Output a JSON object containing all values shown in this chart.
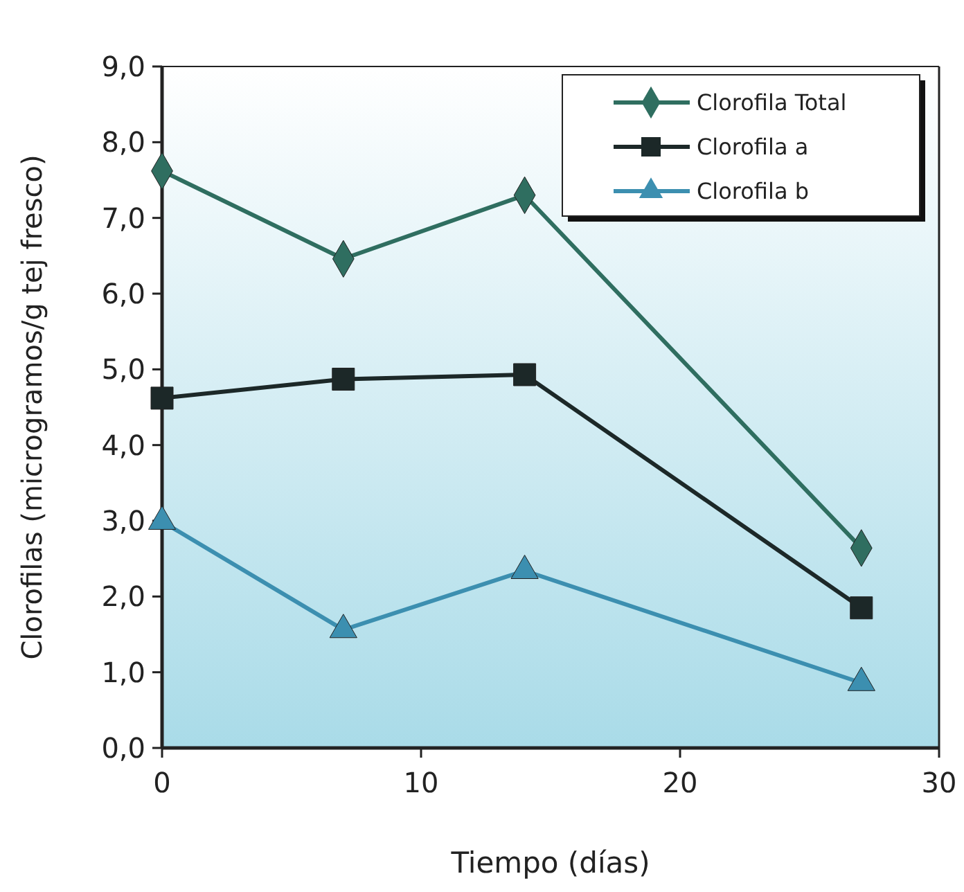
{
  "chart_data": {
    "type": "line",
    "xlabel": "Tiempo (días)",
    "ylabel": "Clorofilas (microgramos/g tej fresco)",
    "xlim": [
      0,
      30
    ],
    "xticks": [
      0,
      10,
      20,
      30
    ],
    "ylim": [
      0,
      9
    ],
    "yticks": [
      {
        "value": 0,
        "label": "0,0"
      },
      {
        "value": 1,
        "label": "1,0"
      },
      {
        "value": 2,
        "label": "2,0"
      },
      {
        "value": 3,
        "label": "3,0"
      },
      {
        "value": 4,
        "label": "4,0"
      },
      {
        "value": 5,
        "label": "5,0"
      },
      {
        "value": 6,
        "label": "6,0"
      },
      {
        "value": 7,
        "label": "7,0"
      },
      {
        "value": 8,
        "label": "8,0"
      },
      {
        "value": 9,
        "label": "9,0"
      }
    ],
    "x": [
      0,
      7,
      14,
      27
    ],
    "series": [
      {
        "name": "Clorofila Total",
        "color": "#2f6e60",
        "marker": "diamond",
        "values": [
          7.62,
          6.46,
          7.3,
          2.64
        ]
      },
      {
        "name": "Clorofila a",
        "color": "#1c2828",
        "marker": "square",
        "values": [
          4.62,
          4.87,
          4.93,
          1.85
        ]
      },
      {
        "name": "Clorofila b",
        "color": "#3c8fb0",
        "marker": "triangle",
        "values": [
          2.99,
          1.56,
          2.34,
          0.86
        ]
      }
    ],
    "legend": "top right",
    "grid": false,
    "line_style": "solid"
  }
}
